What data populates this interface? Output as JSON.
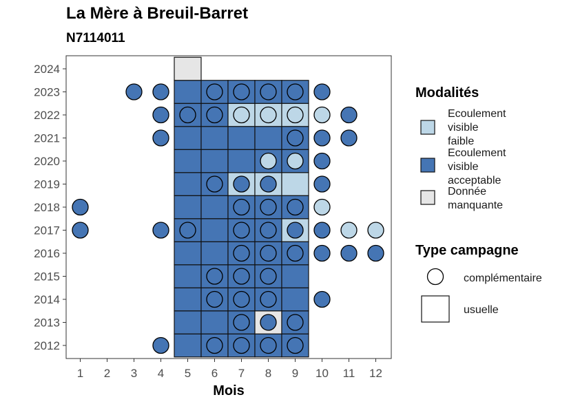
{
  "chart_data": {
    "type": "heatmap",
    "title": "La Mère à Breuil-Barret",
    "subtitle": "N7114011",
    "xlabel": "Mois",
    "ylabel": "",
    "x_categories": [
      "1",
      "2",
      "3",
      "4",
      "5",
      "6",
      "7",
      "8",
      "9",
      "10",
      "11",
      "12"
    ],
    "y_categories": [
      "2012",
      "2013",
      "2014",
      "2015",
      "2016",
      "2017",
      "2018",
      "2019",
      "2020",
      "2021",
      "2022",
      "2023",
      "2024"
    ],
    "grid": false,
    "legend_placement": "right",
    "colors": {
      "faible": "#bdd7e7",
      "acceptable": "#4575b4",
      "manquante": "#e6e6e6"
    },
    "legend_modalites": {
      "title": "Modalités",
      "items": [
        {
          "key": "faible",
          "lines": [
            "Ecoulement",
            "visible",
            "faible"
          ]
        },
        {
          "key": "acceptable",
          "lines": [
            "Ecoulement",
            "visible",
            "acceptable"
          ]
        },
        {
          "key": "manquante",
          "lines": [
            "Donnée",
            "manquante"
          ]
        }
      ]
    },
    "legend_type": {
      "title": "Type campagne",
      "items": [
        {
          "key": "complementaire",
          "label": "complémentaire"
        },
        {
          "key": "usuelle",
          "label": "usuelle"
        }
      ]
    },
    "usuelle": [
      {
        "year": "2012",
        "month": 5,
        "mod": "acceptable"
      },
      {
        "year": "2012",
        "month": 6,
        "mod": "acceptable"
      },
      {
        "year": "2012",
        "month": 7,
        "mod": "acceptable"
      },
      {
        "year": "2012",
        "month": 8,
        "mod": "acceptable"
      },
      {
        "year": "2012",
        "month": 9,
        "mod": "acceptable"
      },
      {
        "year": "2013",
        "month": 5,
        "mod": "acceptable"
      },
      {
        "year": "2013",
        "month": 6,
        "mod": "acceptable"
      },
      {
        "year": "2013",
        "month": 7,
        "mod": "acceptable"
      },
      {
        "year": "2013",
        "month": 8,
        "mod": "manquante"
      },
      {
        "year": "2013",
        "month": 9,
        "mod": "acceptable"
      },
      {
        "year": "2014",
        "month": 5,
        "mod": "acceptable"
      },
      {
        "year": "2014",
        "month": 6,
        "mod": "acceptable"
      },
      {
        "year": "2014",
        "month": 7,
        "mod": "acceptable"
      },
      {
        "year": "2014",
        "month": 8,
        "mod": "acceptable"
      },
      {
        "year": "2014",
        "month": 9,
        "mod": "acceptable"
      },
      {
        "year": "2015",
        "month": 5,
        "mod": "acceptable"
      },
      {
        "year": "2015",
        "month": 6,
        "mod": "acceptable"
      },
      {
        "year": "2015",
        "month": 7,
        "mod": "acceptable"
      },
      {
        "year": "2015",
        "month": 8,
        "mod": "acceptable"
      },
      {
        "year": "2015",
        "month": 9,
        "mod": "acceptable"
      },
      {
        "year": "2016",
        "month": 5,
        "mod": "acceptable"
      },
      {
        "year": "2016",
        "month": 6,
        "mod": "acceptable"
      },
      {
        "year": "2016",
        "month": 7,
        "mod": "acceptable"
      },
      {
        "year": "2016",
        "month": 8,
        "mod": "acceptable"
      },
      {
        "year": "2016",
        "month": 9,
        "mod": "acceptable"
      },
      {
        "year": "2017",
        "month": 5,
        "mod": "acceptable"
      },
      {
        "year": "2017",
        "month": 6,
        "mod": "acceptable"
      },
      {
        "year": "2017",
        "month": 7,
        "mod": "acceptable"
      },
      {
        "year": "2017",
        "month": 8,
        "mod": "acceptable"
      },
      {
        "year": "2017",
        "month": 9,
        "mod": "faible"
      },
      {
        "year": "2018",
        "month": 5,
        "mod": "acceptable"
      },
      {
        "year": "2018",
        "month": 6,
        "mod": "acceptable"
      },
      {
        "year": "2018",
        "month": 7,
        "mod": "acceptable"
      },
      {
        "year": "2018",
        "month": 8,
        "mod": "acceptable"
      },
      {
        "year": "2018",
        "month": 9,
        "mod": "acceptable"
      },
      {
        "year": "2019",
        "month": 5,
        "mod": "acceptable"
      },
      {
        "year": "2019",
        "month": 6,
        "mod": "acceptable"
      },
      {
        "year": "2019",
        "month": 7,
        "mod": "faible"
      },
      {
        "year": "2019",
        "month": 8,
        "mod": "faible"
      },
      {
        "year": "2019",
        "month": 9,
        "mod": "faible"
      },
      {
        "year": "2020",
        "month": 5,
        "mod": "acceptable"
      },
      {
        "year": "2020",
        "month": 6,
        "mod": "acceptable"
      },
      {
        "year": "2020",
        "month": 7,
        "mod": "acceptable"
      },
      {
        "year": "2020",
        "month": 8,
        "mod": "acceptable"
      },
      {
        "year": "2020",
        "month": 9,
        "mod": "acceptable"
      },
      {
        "year": "2021",
        "month": 5,
        "mod": "acceptable"
      },
      {
        "year": "2021",
        "month": 6,
        "mod": "acceptable"
      },
      {
        "year": "2021",
        "month": 7,
        "mod": "acceptable"
      },
      {
        "year": "2021",
        "month": 8,
        "mod": "acceptable"
      },
      {
        "year": "2021",
        "month": 9,
        "mod": "acceptable"
      },
      {
        "year": "2022",
        "month": 5,
        "mod": "acceptable"
      },
      {
        "year": "2022",
        "month": 6,
        "mod": "acceptable"
      },
      {
        "year": "2022",
        "month": 7,
        "mod": "faible"
      },
      {
        "year": "2022",
        "month": 8,
        "mod": "faible"
      },
      {
        "year": "2022",
        "month": 9,
        "mod": "faible"
      },
      {
        "year": "2023",
        "month": 5,
        "mod": "acceptable"
      },
      {
        "year": "2023",
        "month": 6,
        "mod": "acceptable"
      },
      {
        "year": "2023",
        "month": 7,
        "mod": "acceptable"
      },
      {
        "year": "2023",
        "month": 8,
        "mod": "acceptable"
      },
      {
        "year": "2023",
        "month": 9,
        "mod": "acceptable"
      },
      {
        "year": "2024",
        "month": 5,
        "mod": "manquante"
      }
    ],
    "complementaire": [
      {
        "year": "2012",
        "month": 4,
        "mod": "acceptable"
      },
      {
        "year": "2012",
        "month": 6,
        "mod": "acceptable"
      },
      {
        "year": "2012",
        "month": 7,
        "mod": "acceptable"
      },
      {
        "year": "2012",
        "month": 8,
        "mod": "acceptable"
      },
      {
        "year": "2012",
        "month": 9,
        "mod": "acceptable"
      },
      {
        "year": "2013",
        "month": 7,
        "mod": "acceptable"
      },
      {
        "year": "2013",
        "month": 8,
        "mod": "acceptable"
      },
      {
        "year": "2013",
        "month": 9,
        "mod": "acceptable"
      },
      {
        "year": "2014",
        "month": 6,
        "mod": "acceptable"
      },
      {
        "year": "2014",
        "month": 7,
        "mod": "acceptable"
      },
      {
        "year": "2014",
        "month": 8,
        "mod": "acceptable"
      },
      {
        "year": "2014",
        "month": 10,
        "mod": "acceptable"
      },
      {
        "year": "2015",
        "month": 6,
        "mod": "acceptable"
      },
      {
        "year": "2015",
        "month": 7,
        "mod": "acceptable"
      },
      {
        "year": "2015",
        "month": 8,
        "mod": "acceptable"
      },
      {
        "year": "2016",
        "month": 7,
        "mod": "acceptable"
      },
      {
        "year": "2016",
        "month": 8,
        "mod": "acceptable"
      },
      {
        "year": "2016",
        "month": 9,
        "mod": "acceptable"
      },
      {
        "year": "2016",
        "month": 10,
        "mod": "acceptable"
      },
      {
        "year": "2016",
        "month": 11,
        "mod": "acceptable"
      },
      {
        "year": "2016",
        "month": 12,
        "mod": "acceptable"
      },
      {
        "year": "2017",
        "month": 1,
        "mod": "acceptable"
      },
      {
        "year": "2017",
        "month": 4,
        "mod": "acceptable"
      },
      {
        "year": "2017",
        "month": 5,
        "mod": "acceptable"
      },
      {
        "year": "2017",
        "month": 7,
        "mod": "acceptable"
      },
      {
        "year": "2017",
        "month": 8,
        "mod": "acceptable"
      },
      {
        "year": "2017",
        "month": 9,
        "mod": "acceptable"
      },
      {
        "year": "2017",
        "month": 10,
        "mod": "acceptable"
      },
      {
        "year": "2017",
        "month": 11,
        "mod": "faible"
      },
      {
        "year": "2017",
        "month": 12,
        "mod": "faible"
      },
      {
        "year": "2018",
        "month": 1,
        "mod": "acceptable"
      },
      {
        "year": "2018",
        "month": 7,
        "mod": "acceptable"
      },
      {
        "year": "2018",
        "month": 8,
        "mod": "acceptable"
      },
      {
        "year": "2018",
        "month": 9,
        "mod": "acceptable"
      },
      {
        "year": "2018",
        "month": 10,
        "mod": "faible"
      },
      {
        "year": "2019",
        "month": 6,
        "mod": "acceptable"
      },
      {
        "year": "2019",
        "month": 7,
        "mod": "acceptable"
      },
      {
        "year": "2019",
        "month": 8,
        "mod": "acceptable"
      },
      {
        "year": "2019",
        "month": 10,
        "mod": "acceptable"
      },
      {
        "year": "2020",
        "month": 8,
        "mod": "faible"
      },
      {
        "year": "2020",
        "month": 9,
        "mod": "faible"
      },
      {
        "year": "2020",
        "month": 10,
        "mod": "acceptable"
      },
      {
        "year": "2021",
        "month": 4,
        "mod": "acceptable"
      },
      {
        "year": "2021",
        "month": 9,
        "mod": "acceptable"
      },
      {
        "year": "2021",
        "month": 10,
        "mod": "acceptable"
      },
      {
        "year": "2021",
        "month": 11,
        "mod": "acceptable"
      },
      {
        "year": "2022",
        "month": 4,
        "mod": "acceptable"
      },
      {
        "year": "2022",
        "month": 5,
        "mod": "acceptable"
      },
      {
        "year": "2022",
        "month": 6,
        "mod": "acceptable"
      },
      {
        "year": "2022",
        "month": 7,
        "mod": "faible"
      },
      {
        "year": "2022",
        "month": 8,
        "mod": "faible"
      },
      {
        "year": "2022",
        "month": 9,
        "mod": "faible"
      },
      {
        "year": "2022",
        "month": 10,
        "mod": "faible"
      },
      {
        "year": "2022",
        "month": 11,
        "mod": "acceptable"
      },
      {
        "year": "2023",
        "month": 3,
        "mod": "acceptable"
      },
      {
        "year": "2023",
        "month": 4,
        "mod": "acceptable"
      },
      {
        "year": "2023",
        "month": 6,
        "mod": "acceptable"
      },
      {
        "year": "2023",
        "month": 7,
        "mod": "acceptable"
      },
      {
        "year": "2023",
        "month": 8,
        "mod": "acceptable"
      },
      {
        "year": "2023",
        "month": 9,
        "mod": "acceptable"
      },
      {
        "year": "2023",
        "month": 10,
        "mod": "acceptable"
      }
    ]
  }
}
